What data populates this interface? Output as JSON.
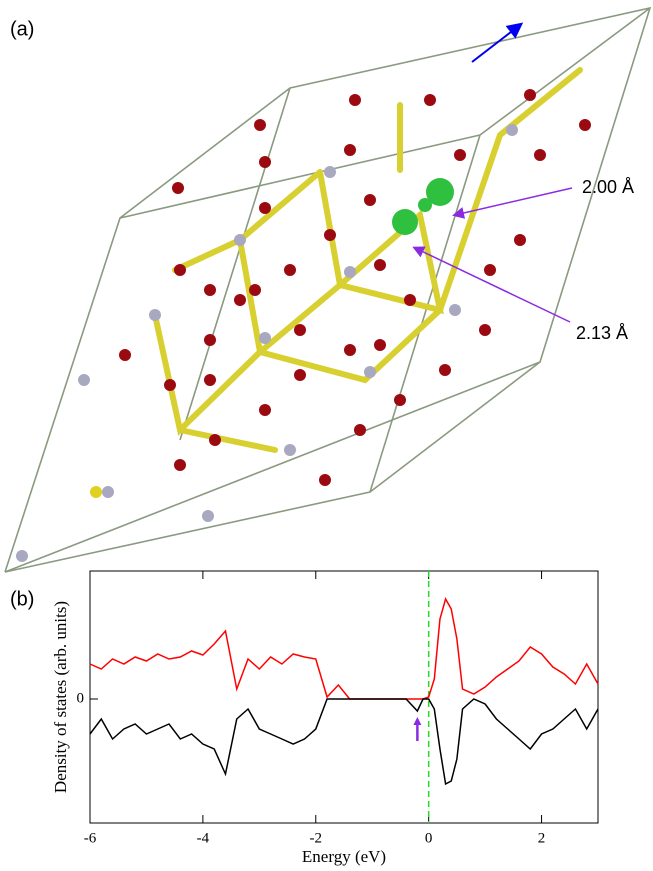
{
  "panel_a": {
    "label": "(a)",
    "annotations": [
      "2.00 Å",
      "2.13 Å"
    ]
  },
  "chart_data": {
    "type": "line",
    "panel_label": "(b)",
    "x_label": "Energy (eV)",
    "y_label": "Density of states (arb. units)",
    "xlim": [
      -6,
      3
    ],
    "ylim": [
      -1.24,
      1.28
    ],
    "xticks": [
      -6,
      -4,
      -2,
      0,
      2
    ],
    "yticks": [
      0
    ],
    "vline": 0,
    "vline_color": "#22dd22",
    "arrow_x": -0.2,
    "arrow_color": "#8a2be2",
    "x": [
      -6,
      -5.8,
      -5.6,
      -5.4,
      -5.2,
      -5,
      -4.8,
      -4.6,
      -4.4,
      -4.2,
      -4,
      -3.8,
      -3.6,
      -3.4,
      -3.2,
      -3,
      -2.8,
      -2.6,
      -2.4,
      -2.2,
      -2,
      -1.8,
      -1.6,
      -1.4,
      -1.2,
      -1,
      -0.8,
      -0.6,
      -0.4,
      -0.2,
      -0.1,
      0,
      0.1,
      0.2,
      0.3,
      0.4,
      0.5,
      0.6,
      0.8,
      1,
      1.2,
      1.4,
      1.6,
      1.8,
      2,
      2.2,
      2.4,
      2.6,
      2.8,
      3
    ],
    "series": [
      {
        "color": "#ff0000",
        "values": [
          0.35,
          0.3,
          0.4,
          0.35,
          0.42,
          0.38,
          0.45,
          0.4,
          0.42,
          0.48,
          0.44,
          0.55,
          0.68,
          0.1,
          0.4,
          0.3,
          0.42,
          0.35,
          0.45,
          0.42,
          0.4,
          0.02,
          0.14,
          0,
          0,
          0,
          0,
          0,
          0,
          0,
          0,
          0.02,
          0.2,
          0.8,
          1.0,
          0.9,
          0.6,
          0.1,
          0.05,
          0.12,
          0.22,
          0.3,
          0.38,
          0.52,
          0.45,
          0.32,
          0.25,
          0.15,
          0.35,
          0.15
        ]
      },
      {
        "color": "#000000",
        "values": [
          -0.35,
          -0.2,
          -0.4,
          -0.3,
          -0.25,
          -0.35,
          -0.3,
          -0.25,
          -0.4,
          -0.35,
          -0.45,
          -0.5,
          -0.75,
          -0.2,
          -0.1,
          -0.3,
          -0.35,
          -0.4,
          -0.45,
          -0.4,
          -0.3,
          0,
          0,
          0,
          0,
          0,
          0,
          0,
          0,
          -0.12,
          0,
          0,
          -0.1,
          -0.5,
          -0.85,
          -0.82,
          -0.6,
          -0.1,
          0,
          -0.05,
          -0.2,
          -0.3,
          -0.4,
          -0.5,
          -0.35,
          -0.3,
          -0.2,
          -0.1,
          -0.3,
          -0.1
        ]
      }
    ]
  }
}
